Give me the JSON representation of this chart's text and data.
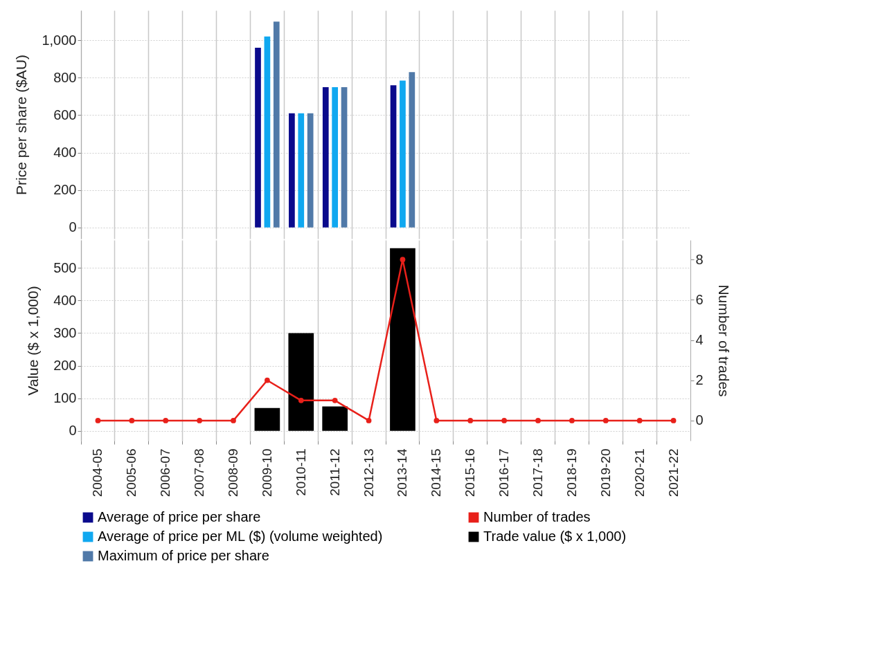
{
  "chart_data": [
    {
      "type": "bar",
      "ylabel": "Price per share ($AU)",
      "categories": [
        "2004-05",
        "2005-06",
        "2006-07",
        "2007-08",
        "2008-09",
        "2009-10",
        "2010-11",
        "2011-12",
        "2012-13",
        "2013-14",
        "2014-15",
        "2015-16",
        "2016-17",
        "2017-18",
        "2018-19",
        "2019-20",
        "2020-21",
        "2021-22"
      ],
      "series": [
        {
          "name": "Average of price per share",
          "color": "#0a0a8c",
          "values": [
            null,
            null,
            null,
            null,
            null,
            960,
            610,
            750,
            null,
            760,
            null,
            null,
            null,
            null,
            null,
            null,
            null,
            null
          ]
        },
        {
          "name": "Average of price per ML ($) (volume weighted)",
          "color": "#10a8f0",
          "values": [
            null,
            null,
            null,
            null,
            null,
            1020,
            610,
            750,
            null,
            785,
            null,
            null,
            null,
            null,
            null,
            null,
            null,
            null
          ]
        },
        {
          "name": "Maximum of price per share",
          "color": "#5079a8",
          "values": [
            null,
            null,
            null,
            null,
            null,
            1100,
            610,
            750,
            null,
            830,
            null,
            null,
            null,
            null,
            null,
            null,
            null,
            null
          ]
        }
      ],
      "ylim": [
        -60,
        1160
      ],
      "yticks": [
        0,
        200,
        400,
        600,
        800,
        {
          "value": 1000,
          "label": "1,000"
        }
      ],
      "grid": true,
      "legend": "bottom",
      "tick_labels": "y"
    },
    {
      "type": "bar",
      "ylabel": "Value ($ x 1,000)",
      "y2label": "Number of trades",
      "categories": [
        "2004-05",
        "2005-06",
        "2006-07",
        "2007-08",
        "2008-09",
        "2009-10",
        "2010-11",
        "2011-12",
        "2012-13",
        "2013-14",
        "2014-15",
        "2015-16",
        "2016-17",
        "2017-18",
        "2018-19",
        "2019-20",
        "2020-21",
        "2021-22"
      ],
      "series": [
        {
          "name": "Number of trades",
          "type": "line",
          "axis": "y2",
          "color": "#e8201a",
          "values": [
            0,
            0,
            0,
            0,
            0,
            2,
            1,
            1,
            0,
            8,
            0,
            0,
            0,
            0,
            0,
            0,
            0,
            0
          ]
        },
        {
          "name": "Trade value ($ x 1,000)",
          "color": "#000000",
          "values": [
            null,
            null,
            null,
            null,
            null,
            70,
            300,
            75,
            null,
            560,
            null,
            null,
            null,
            null,
            null,
            null,
            null,
            null
          ]
        }
      ],
      "ylim": [
        -30,
        585
      ],
      "yticks": [
        0,
        100,
        200,
        300,
        400,
        500
      ],
      "y2lim": [
        -1,
        8.97
      ],
      "y2ticks": [
        0,
        2,
        4,
        6,
        8
      ],
      "grid": true,
      "legend": "bottom",
      "marker": "circle"
    }
  ]
}
